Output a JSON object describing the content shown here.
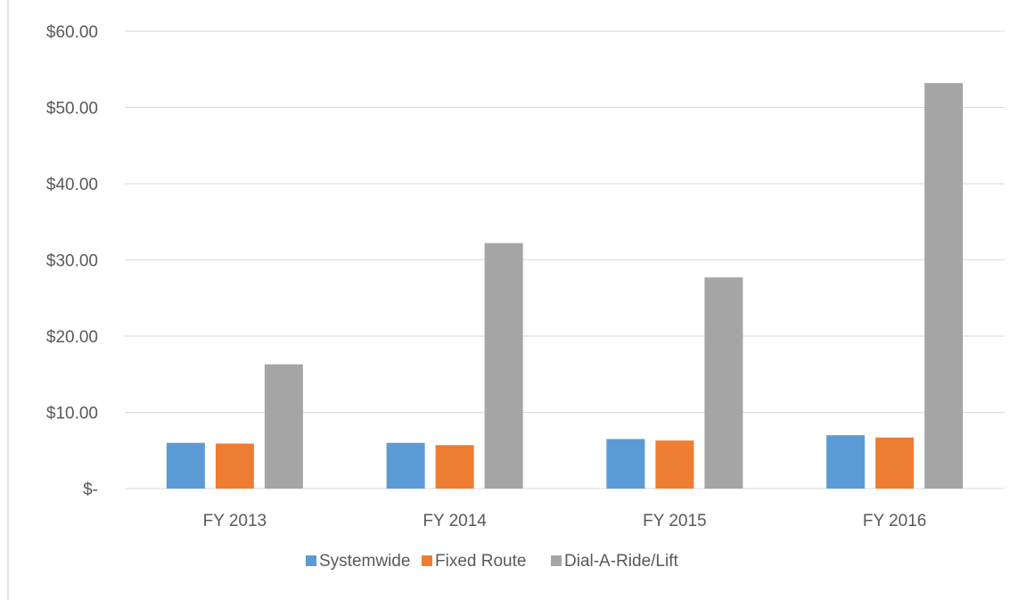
{
  "chart_data": {
    "type": "bar",
    "title": "",
    "xlabel": "",
    "ylabel": "",
    "categories": [
      "FY 2013",
      "FY 2014",
      "FY 2015",
      "FY 2016"
    ],
    "series": [
      {
        "name": "Systemwide",
        "color": "#5b9bd5",
        "values": [
          6.0,
          6.0,
          6.5,
          7.0
        ]
      },
      {
        "name": "Fixed Route",
        "color": "#ed7d31",
        "values": [
          5.9,
          5.7,
          6.3,
          6.7
        ]
      },
      {
        "name": "Dial-A-Ride/Lift",
        "color": "#a5a5a5",
        "values": [
          16.3,
          32.2,
          27.7,
          53.2
        ]
      }
    ],
    "ylim": [
      0,
      60
    ],
    "y_ticks": [
      0,
      10,
      20,
      30,
      40,
      50,
      60
    ],
    "y_tick_labels": [
      "$-",
      "$10.00",
      "$20.00",
      "$30.00",
      "$40.00",
      "$50.00",
      "$60.00"
    ],
    "grid": true,
    "legend_position": "bottom"
  }
}
